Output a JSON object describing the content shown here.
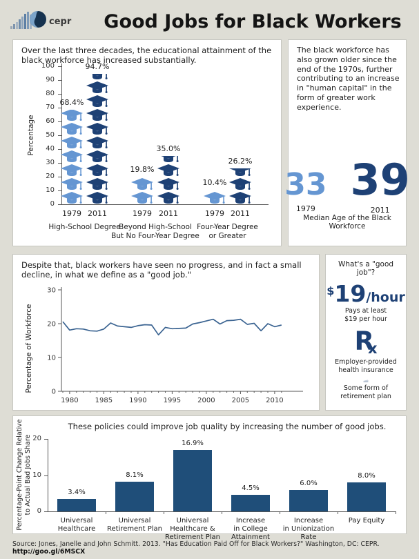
{
  "header": {
    "title": "Good Jobs for Black Workers",
    "logo_text": "cepr"
  },
  "colors": {
    "light_blue": "#6596d2",
    "dark_blue": "#1e4175",
    "bar_blue": "#1f4e79",
    "line_blue": "#3a6391",
    "background": "#deddd5"
  },
  "education_panel": {
    "intro": "Over the last three decades, the educational attainment of the black workforce has increased substantially."
  },
  "age_panel": {
    "text": "The black workforce has also grown older since the end of the 1970s, further contributing to an increase in \"human capital\" in the form of greater work experience.",
    "age_1979": "33",
    "age_2011": "39",
    "label_1979": "1979",
    "label_2011": "2011",
    "caption": "Median Age of the Black Workforce"
  },
  "trend_panel": {
    "intro": "Despite that, black workers have seen no progress, and in fact a small decline, in what we define as a \"good job.\""
  },
  "goodjob_panel": {
    "title": "What's a \"good job\"?",
    "wage_dollar": "$",
    "wage_amount": "19",
    "wage_unit": "/hour",
    "wage_caption": "Pays at least\n$19 per hour",
    "insurance_caption": "Employer-provided\nhealth insurance",
    "retirement_caption": "Some form of\nretirement plan"
  },
  "policies_panel": {
    "title": "These policies could improve job quality by increasing the number of good jobs."
  },
  "source": {
    "text": "Source: Jones, Janelle and John Schmitt. 2013. \"Has Education Paid Off for Black Workers?\" Washington, DC: CEPR. ",
    "url": "http://goo.gl/6MSCX"
  },
  "chart_data": [
    {
      "id": "education-attainment",
      "type": "bar",
      "variant": "pictograph-graduation-caps",
      "title": "Over the last three decades, the educational attainment of the black workforce has increased substantially.",
      "ylabel": "Percentage",
      "ylim": [
        0,
        100
      ],
      "yticks": [
        0,
        10,
        20,
        30,
        40,
        50,
        60,
        70,
        80,
        90,
        100
      ],
      "unit_per_icon": 10,
      "categories": [
        "High-School Degree",
        "Beyond High-School\nBut No Four-Year Degree",
        "Four-Year Degree\nor Greater"
      ],
      "series": [
        {
          "name": "1979",
          "color": "#6596d2",
          "values": [
            68.4,
            19.8,
            10.4
          ]
        },
        {
          "name": "2011",
          "color": "#1e4175",
          "values": [
            94.7,
            35.0,
            26.2
          ]
        }
      ],
      "value_labels": [
        [
          "68.4%",
          "94.7%"
        ],
        [
          "19.8%",
          "35.0%"
        ],
        [
          "10.4%",
          "26.2%"
        ]
      ]
    },
    {
      "id": "good-jobs-trend",
      "type": "line",
      "title": "Despite that, black workers have seen no progress, and in fact a small decline, in what we define as a \"good job.\"",
      "ylabel": "Percentage of Workforce",
      "ylim": [
        0,
        30
      ],
      "yticks": [
        0,
        10,
        20,
        30
      ],
      "xticks": [
        1980,
        1985,
        1990,
        1995,
        2000,
        2005,
        2010
      ],
      "x_start": 1979,
      "x_end": 2011,
      "values": [
        20.6,
        18.1,
        18.5,
        18.4,
        17.9,
        17.8,
        18.4,
        20.2,
        19.3,
        19.1,
        18.9,
        19.4,
        19.7,
        19.6,
        16.7,
        18.9,
        18.5,
        18.6,
        18.7,
        19.9,
        20.3,
        20.8,
        21.3,
        19.9,
        20.9,
        21.0,
        21.3,
        19.8,
        20.1,
        17.9,
        20.0,
        19.1,
        19.6
      ]
    },
    {
      "id": "policies",
      "type": "bar",
      "title": "These policies could improve job quality by increasing the number of good jobs.",
      "ylabel": "Percentage-Point Change Relative\nto Actual Bad Jobs Share",
      "ylim": [
        0,
        20
      ],
      "yticks": [
        0,
        10,
        20
      ],
      "categories": [
        "Universal\nHealthcare",
        "Universal\nRetirement Plan",
        "Universal\nHealthcare &\nRetirement Plan",
        "Increase\nin College\nAttainment",
        "Increase\nin Unionization\nRate",
        "Pay Equity"
      ],
      "values": [
        3.4,
        8.1,
        16.9,
        4.5,
        6.0,
        8.0
      ],
      "value_labels": [
        "3.4%",
        "8.1%",
        "16.9%",
        "4.5%",
        "6.0%",
        "8.0%"
      ]
    }
  ]
}
